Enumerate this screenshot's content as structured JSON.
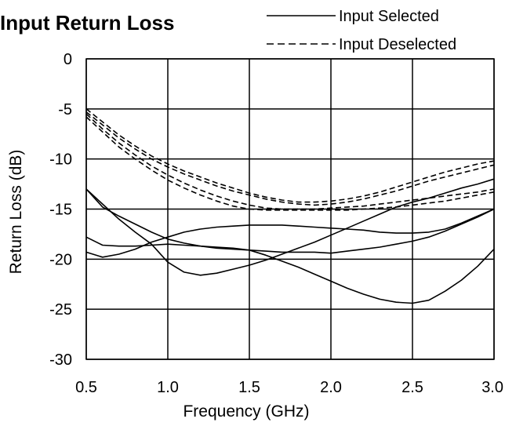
{
  "chart_data": {
    "type": "line",
    "title": "Input Return Loss",
    "xlabel": "Frequency (GHz)",
    "ylabel": "Return Loss (dB)",
    "xlim": [
      0.5,
      3.0
    ],
    "ylim": [
      -30,
      0
    ],
    "xticks": [
      "0.5",
      "1.0",
      "1.5",
      "2.0",
      "2.5",
      "3.0"
    ],
    "yticks": [
      "0",
      "-5",
      "-10",
      "-15",
      "-20",
      "-25",
      "-30"
    ],
    "grid": true,
    "legend_position": "top-right",
    "legend": [
      {
        "label": "Input Selected",
        "style": "solid"
      },
      {
        "label": "Input Deselected",
        "style": "dashed"
      }
    ],
    "series": [
      {
        "group": "Input Selected",
        "style": "solid",
        "x": [
          0.5,
          0.6,
          0.7,
          0.8,
          0.9,
          1.0,
          1.1,
          1.2,
          1.3,
          1.4,
          1.5,
          1.6,
          1.7,
          1.8,
          1.9,
          2.0,
          2.1,
          2.2,
          2.3,
          2.4,
          2.5,
          2.6,
          2.7,
          2.8,
          2.9,
          3.0
        ],
        "y": [
          -13.0,
          -14.5,
          -16.0,
          -17.3,
          -18.5,
          -20.3,
          -21.3,
          -21.6,
          -21.4,
          -21.0,
          -20.6,
          -20.1,
          -19.5,
          -18.9,
          -18.3,
          -17.6,
          -16.9,
          -16.2,
          -15.5,
          -14.8,
          -14.3,
          -13.9,
          -13.4,
          -12.9,
          -12.5,
          -12.0
        ]
      },
      {
        "group": "Input Selected",
        "style": "solid",
        "x": [
          0.5,
          0.6,
          0.7,
          0.8,
          0.9,
          1.0,
          1.1,
          1.2,
          1.3,
          1.4,
          1.5,
          1.6,
          1.7,
          1.8,
          1.9,
          2.0,
          2.1,
          2.2,
          2.3,
          2.4,
          2.5,
          2.6,
          2.7,
          2.8,
          2.9,
          3.0
        ],
        "y": [
          -13.0,
          -14.8,
          -15.7,
          -16.5,
          -17.3,
          -18.0,
          -18.4,
          -18.7,
          -18.8,
          -18.9,
          -19.1,
          -19.6,
          -20.2,
          -20.8,
          -21.5,
          -22.2,
          -22.9,
          -23.5,
          -24.0,
          -24.3,
          -24.4,
          -24.1,
          -23.2,
          -22.1,
          -20.7,
          -19.0
        ]
      },
      {
        "group": "Input Selected",
        "style": "solid",
        "x": [
          0.5,
          0.6,
          0.7,
          0.8,
          0.9,
          1.0,
          1.1,
          1.2,
          1.3,
          1.4,
          1.5,
          1.6,
          1.7,
          1.8,
          1.9,
          2.0,
          2.1,
          2.2,
          2.3,
          2.4,
          2.5,
          2.6,
          2.7,
          2.8,
          2.9,
          3.0
        ],
        "y": [
          -17.8,
          -18.6,
          -18.7,
          -18.7,
          -18.6,
          -18.5,
          -18.6,
          -18.7,
          -18.9,
          -19.0,
          -19.1,
          -19.2,
          -19.3,
          -19.3,
          -19.3,
          -19.4,
          -19.2,
          -19.0,
          -18.8,
          -18.5,
          -18.2,
          -17.8,
          -17.2,
          -16.5,
          -15.8,
          -15.0
        ]
      },
      {
        "group": "Input Selected",
        "style": "solid",
        "x": [
          0.5,
          0.6,
          0.7,
          0.8,
          0.9,
          1.0,
          1.1,
          1.2,
          1.3,
          1.4,
          1.5,
          1.6,
          1.7,
          1.8,
          1.9,
          2.0,
          2.1,
          2.2,
          2.3,
          2.4,
          2.5,
          2.6,
          2.7,
          2.8,
          2.9,
          3.0
        ],
        "y": [
          -19.3,
          -19.8,
          -19.5,
          -19.0,
          -18.3,
          -17.8,
          -17.3,
          -17.0,
          -16.8,
          -16.7,
          -16.6,
          -16.6,
          -16.6,
          -16.7,
          -16.8,
          -16.9,
          -17.0,
          -17.1,
          -17.3,
          -17.4,
          -17.4,
          -17.3,
          -17.0,
          -16.4,
          -15.7,
          -15.0
        ]
      },
      {
        "group": "Input Deselected",
        "style": "dashed",
        "x": [
          0.5,
          0.6,
          0.7,
          0.8,
          0.9,
          1.0,
          1.1,
          1.2,
          1.3,
          1.4,
          1.5,
          1.6,
          1.7,
          1.8,
          1.9,
          2.0,
          2.1,
          2.2,
          2.3,
          2.4,
          2.5,
          2.6,
          2.7,
          2.8,
          2.9,
          3.0
        ],
        "y": [
          -5.0,
          -6.3,
          -7.6,
          -8.7,
          -9.7,
          -10.5,
          -11.2,
          -11.8,
          -12.4,
          -12.9,
          -13.4,
          -13.8,
          -14.1,
          -14.3,
          -14.3,
          -14.2,
          -14.0,
          -13.7,
          -13.3,
          -12.8,
          -12.3,
          -11.8,
          -11.3,
          -10.9,
          -10.5,
          -10.2
        ]
      },
      {
        "group": "Input Deselected",
        "style": "dashed",
        "x": [
          0.5,
          0.6,
          0.7,
          0.8,
          0.9,
          1.0,
          1.1,
          1.2,
          1.3,
          1.4,
          1.5,
          1.6,
          1.7,
          1.8,
          1.9,
          2.0,
          2.1,
          2.2,
          2.3,
          2.4,
          2.5,
          2.6,
          2.7,
          2.8,
          2.9,
          3.0
        ],
        "y": [
          -5.3,
          -6.6,
          -7.9,
          -9.0,
          -10.0,
          -10.8,
          -11.5,
          -12.1,
          -12.7,
          -13.2,
          -13.6,
          -14.0,
          -14.3,
          -14.5,
          -14.6,
          -14.5,
          -14.3,
          -14.0,
          -13.6,
          -13.2,
          -12.7,
          -12.2,
          -11.8,
          -11.4,
          -11.0,
          -10.6
        ]
      },
      {
        "group": "Input Deselected",
        "style": "dashed",
        "x": [
          0.5,
          0.6,
          0.7,
          0.8,
          0.9,
          1.0,
          1.1,
          1.2,
          1.3,
          1.4,
          1.5,
          1.6,
          1.7,
          1.8,
          1.9,
          2.0,
          2.1,
          2.2,
          2.3,
          2.4,
          2.5,
          2.6,
          2.7,
          2.8,
          2.9,
          3.0
        ],
        "y": [
          -5.5,
          -7.0,
          -8.4,
          -9.6,
          -10.7,
          -11.6,
          -12.4,
          -13.1,
          -13.7,
          -14.2,
          -14.6,
          -14.9,
          -15.0,
          -15.0,
          -15.0,
          -14.9,
          -14.8,
          -14.7,
          -14.5,
          -14.3,
          -14.1,
          -13.9,
          -13.7,
          -13.5,
          -13.3,
          -13.0
        ]
      },
      {
        "group": "Input Deselected",
        "style": "dashed",
        "x": [
          0.5,
          0.6,
          0.7,
          0.8,
          0.9,
          1.0,
          1.1,
          1.2,
          1.3,
          1.4,
          1.5,
          1.6,
          1.7,
          1.8,
          1.9,
          2.0,
          2.1,
          2.2,
          2.3,
          2.4,
          2.5,
          2.6,
          2.7,
          2.8,
          2.9,
          3.0
        ],
        "y": [
          -5.8,
          -7.3,
          -8.8,
          -10.0,
          -11.1,
          -12.1,
          -12.9,
          -13.6,
          -14.2,
          -14.7,
          -15.0,
          -15.1,
          -15.1,
          -15.1,
          -15.1,
          -15.1,
          -15.1,
          -15.0,
          -14.9,
          -14.8,
          -14.6,
          -14.4,
          -14.2,
          -13.9,
          -13.6,
          -13.3
        ]
      }
    ]
  }
}
